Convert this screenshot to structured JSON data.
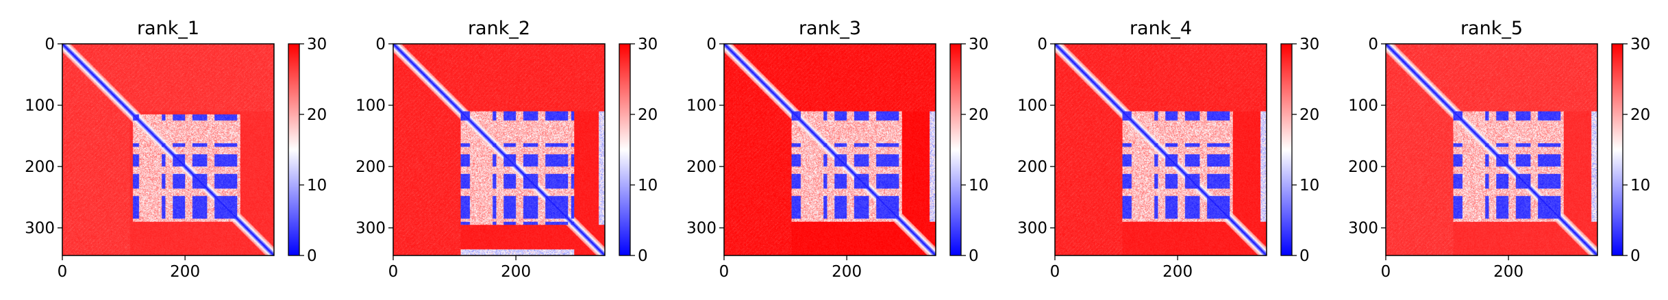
{
  "figure": {
    "colormap": {
      "name": "bwr",
      "low": "#0000ff",
      "mid": "#ffffff",
      "high": "#ff0000"
    },
    "colorbar": {
      "range": [
        0,
        30
      ],
      "ticks": [
        "0",
        "10",
        "20",
        "30"
      ]
    }
  },
  "chart_data": [
    {
      "type": "heatmap",
      "title": "rank_1",
      "matrix_size": 345,
      "xlim": [
        0,
        345
      ],
      "ylim": [
        345,
        0
      ],
      "xticks": [
        "0",
        "200"
      ],
      "yticks": [
        "0",
        "100",
        "200",
        "300"
      ],
      "color_range": [
        0,
        30
      ],
      "grid": false,
      "features": {
        "diagonal_value": 0,
        "background_value": 28,
        "domain_blocks": [
          [
            115,
            290
          ]
        ],
        "row_gaps": [
          [
            132,
            150
          ],
          [
            168,
            180
          ],
          [
            200,
            212
          ],
          [
            236,
            248
          ]
        ],
        "col_gaps": [
          [
            125,
            133
          ],
          [
            150,
            162
          ],
          [
            285,
            290
          ]
        ],
        "edge_blocks": []
      }
    },
    {
      "type": "heatmap",
      "title": "rank_2",
      "matrix_size": 345,
      "xlim": [
        0,
        345
      ],
      "ylim": [
        345,
        0
      ],
      "xticks": [
        "0",
        "200"
      ],
      "yticks": [
        "0",
        "100",
        "200",
        "300"
      ],
      "color_range": [
        0,
        30
      ],
      "grid": false,
      "features": {
        "diagonal_value": 0,
        "background_value": 29,
        "domain_blocks": [
          [
            110,
            295
          ]
        ],
        "row_gaps": [
          [
            132,
            150
          ],
          [
            168,
            180
          ],
          [
            200,
            212
          ],
          [
            236,
            248
          ]
        ],
        "col_gaps": [
          [
            125,
            133
          ],
          [
            150,
            162
          ],
          [
            285,
            290
          ]
        ],
        "edge_blocks": [
          [
            110,
            295,
            335,
            345
          ],
          [
            335,
            345,
            110,
            295
          ]
        ]
      }
    },
    {
      "type": "heatmap",
      "title": "rank_3",
      "matrix_size": 345,
      "xlim": [
        0,
        345
      ],
      "ylim": [
        345,
        0
      ],
      "xticks": [
        "0",
        "200"
      ],
      "yticks": [
        "0",
        "100",
        "200",
        "300"
      ],
      "color_range": [
        0,
        30
      ],
      "grid": false,
      "features": {
        "diagonal_value": 0,
        "background_value": 30,
        "domain_blocks": [
          [
            110,
            290
          ]
        ],
        "row_gaps": [
          [
            132,
            150
          ],
          [
            168,
            180
          ],
          [
            200,
            212
          ],
          [
            236,
            248
          ]
        ],
        "col_gaps": [
          [
            125,
            133
          ],
          [
            150,
            162
          ],
          [
            285,
            290
          ]
        ],
        "edge_blocks": [
          [
            110,
            290,
            335,
            345
          ]
        ]
      }
    },
    {
      "type": "heatmap",
      "title": "rank_4",
      "matrix_size": 345,
      "xlim": [
        0,
        345
      ],
      "ylim": [
        345,
        0
      ],
      "xticks": [
        "0",
        "200"
      ],
      "yticks": [
        "0",
        "100",
        "200",
        "300"
      ],
      "color_range": [
        0,
        30
      ],
      "grid": false,
      "features": {
        "diagonal_value": 0,
        "background_value": 29,
        "domain_blocks": [
          [
            110,
            290
          ]
        ],
        "row_gaps": [
          [
            132,
            150
          ],
          [
            168,
            180
          ],
          [
            200,
            212
          ],
          [
            236,
            248
          ]
        ],
        "col_gaps": [
          [
            125,
            133
          ],
          [
            150,
            162
          ],
          [
            285,
            290
          ]
        ],
        "edge_blocks": [
          [
            110,
            290,
            335,
            345
          ]
        ]
      }
    },
    {
      "type": "heatmap",
      "title": "rank_5",
      "matrix_size": 345,
      "xlim": [
        0,
        345
      ],
      "ylim": [
        345,
        0
      ],
      "xticks": [
        "0",
        "200"
      ],
      "yticks": [
        "0",
        "100",
        "200",
        "300"
      ],
      "color_range": [
        0,
        30
      ],
      "grid": false,
      "features": {
        "diagonal_value": 0,
        "background_value": 28,
        "domain_blocks": [
          [
            110,
            290
          ]
        ],
        "row_gaps": [
          [
            132,
            150
          ],
          [
            168,
            180
          ],
          [
            200,
            212
          ],
          [
            236,
            248
          ]
        ],
        "col_gaps": [
          [
            125,
            133
          ],
          [
            150,
            162
          ],
          [
            285,
            290
          ]
        ],
        "edge_blocks": [
          [
            110,
            290,
            335,
            345
          ]
        ]
      }
    }
  ]
}
